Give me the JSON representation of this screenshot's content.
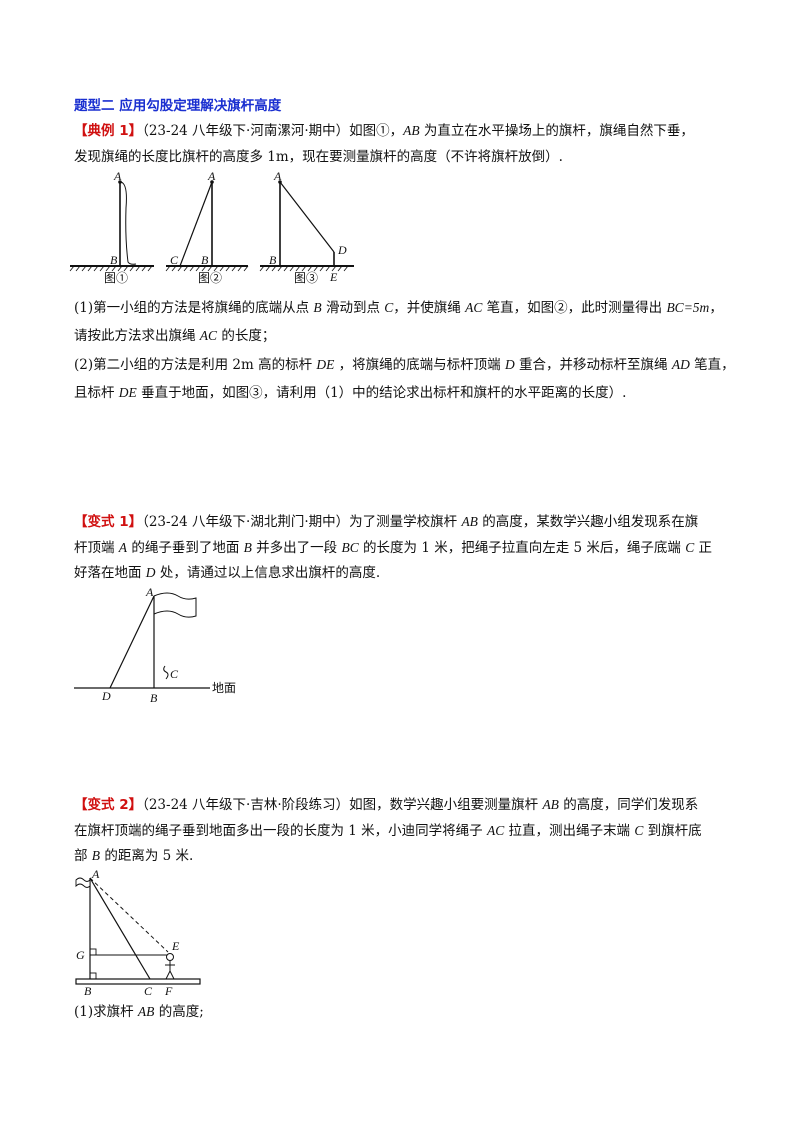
{
  "section_title": "题型二 应用勾股定理解决旗杆高度",
  "example1": {
    "tag": "【典例 1】",
    "source": "（23-24 八年级下·河南漯河·期中）",
    "line1_a": "如图①，",
    "ab": "AB",
    "line1_b": " 为直立在水平操场上的旗杆，旗绳自然下垂，",
    "line2": "发现旗绳的长度比旗杆的高度多 1m，现在要测量旗杆的高度（不许将旗杆放倒）.",
    "q1_line1_a": "(1)第一小组的方法是将旗绳的底端从点 ",
    "q1_line1_b": "B",
    "q1_line1_c": " 滑动到点 ",
    "q1_line1_d": "C",
    "q1_line1_e": "，并使旗绳 ",
    "q1_line1_f": "AC",
    "q1_line1_g": " 笔直，如图②，此时测量得出 ",
    "q1_line1_h": "BC=5m",
    "q1_line1_i": "，",
    "q1_line2_a": "请按此方法求出旗绳 ",
    "q1_line2_b": "AC",
    "q1_line2_c": " 的长度；",
    "q2_line1_a": "(2)第二小组的方法是利用 2m 高的标杆 ",
    "q2_line1_b": "DE",
    "q2_line1_c": " ，将旗绳的底端与标杆顶端 ",
    "q2_line1_d": "D",
    "q2_line1_e": " 重合，并移动标杆至旗绳 ",
    "q2_line1_f": "AD",
    "q2_line1_g": " 笔直，",
    "q2_line2_a": "且标杆 ",
    "q2_line2_b": "DE",
    "q2_line2_c": " 垂直于地面，如图③，请利用（1）中的结论求出标杆和旗杆的水平距离的长度）.",
    "fig_labels": [
      "图①",
      "图②",
      "图③"
    ]
  },
  "variant1": {
    "tag": "【变式 1】",
    "source": "（23-24 八年级下·湖北荆门·期中）",
    "line1_a": "为了测量学校旗杆 ",
    "line1_b": "AB",
    "line1_c": " 的高度，某数学兴趣小组发现系在旗",
    "line2_a": "杆顶端 ",
    "line2_b": "A",
    "line2_c": " 的绳子垂到了地面 ",
    "line2_d": "B",
    "line2_e": " 并多出了一段 ",
    "line2_f": "BC",
    "line2_g": " 的长度为 1 米，把绳子拉直向左走 5 米后，绳子底端 ",
    "line2_h": "C",
    "line2_i": " 正",
    "line3_a": "好落在地面 ",
    "line3_b": "D",
    "line3_c": " 处，请通过以上信息求出旗杆的高度.",
    "ground_label": "地面"
  },
  "variant2": {
    "tag": "【变式 2】",
    "source": "（23-24 八年级下·吉林·阶段练习）",
    "line1_a": "如图，数学兴趣小组要测量旗杆 ",
    "line1_b": "AB",
    "line1_c": " 的高度，同学们发现系",
    "line2_a": "在旗杆顶端的绳子垂到地面多出一段的长度为 1 米，小迪同学将绳子 ",
    "line2_b": "AC",
    "line2_c": " 拉直，测出绳子末端 ",
    "line2_d": "C",
    "line2_e": " 到旗杆底",
    "line3_a": "部 ",
    "line3_b": "B",
    "line3_c": " 的距离为 5 米.",
    "q1_a": "(1)求旗杆 ",
    "q1_b": "AB",
    "q1_c": " 的高度;"
  }
}
